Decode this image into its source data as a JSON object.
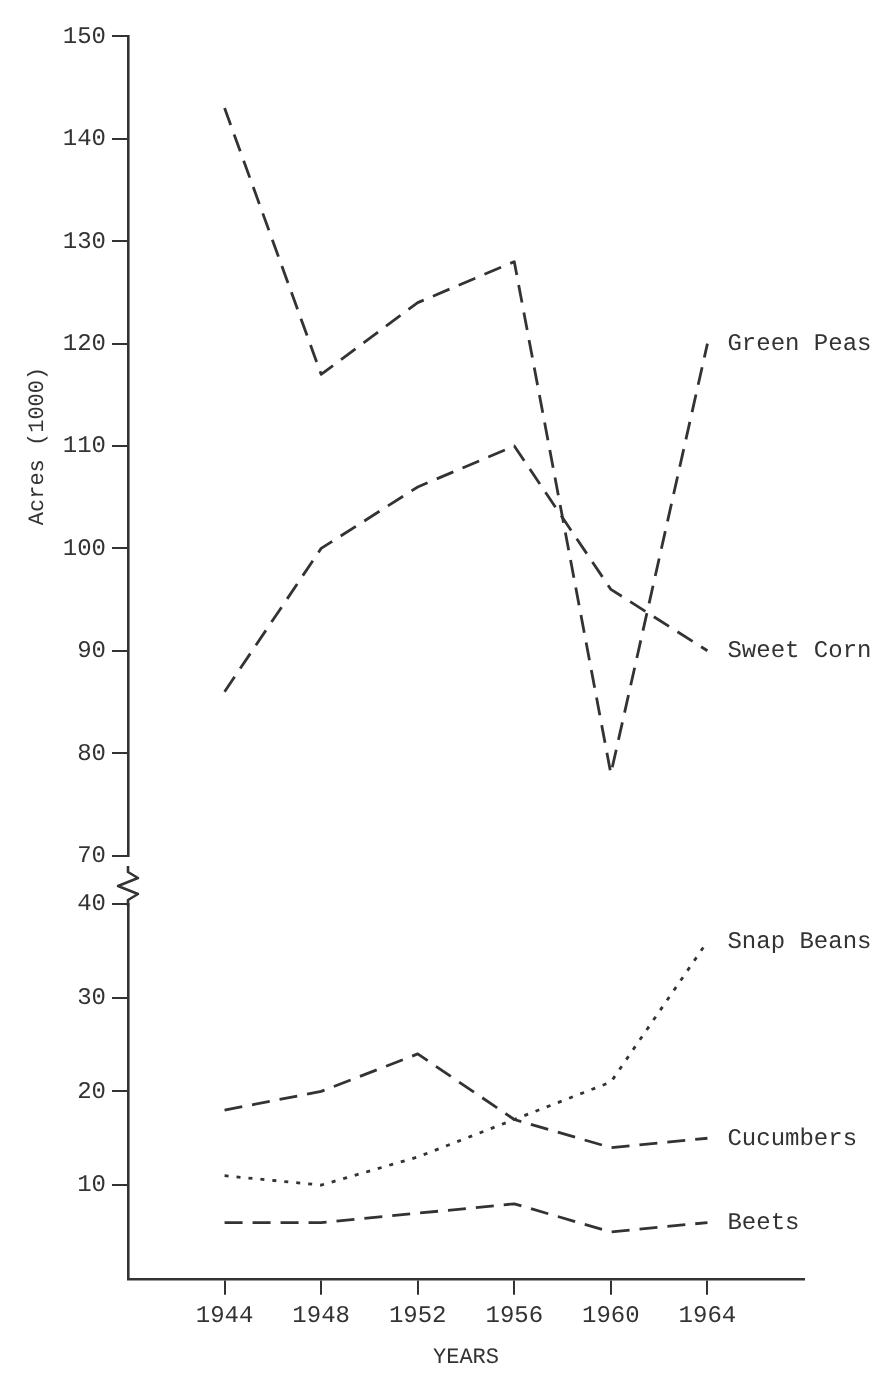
{
  "chart_data": [
    {
      "type": "line",
      "ylabel": "Acres (1000)",
      "x": [
        1944,
        1948,
        1952,
        1956,
        1960,
        1964
      ],
      "ylim": [
        70,
        150
      ],
      "yticks": [
        70,
        80,
        90,
        100,
        110,
        120,
        130,
        140,
        150
      ],
      "tick_labels": "y",
      "grid": false,
      "series": [
        {
          "name": "Green Peas",
          "color": "#333333",
          "line_style": "dashed",
          "values": [
            143,
            117,
            124,
            128,
            78,
            120
          ]
        },
        {
          "name": "Sweet Corn",
          "color": "#333333",
          "line_style": "dashed",
          "values": [
            86,
            100,
            106,
            110,
            96,
            90
          ]
        }
      ]
    },
    {
      "type": "line",
      "xlabel": "YEARS",
      "x": [
        1944,
        1948,
        1952,
        1956,
        1960,
        1964
      ],
      "xlim": [
        1940,
        1968
      ],
      "xticks": [
        1944,
        1948,
        1952,
        1956,
        1960,
        1964
      ],
      "ylim": [
        0,
        40
      ],
      "yticks": [
        10,
        20,
        30,
        40
      ],
      "grid": false,
      "series": [
        {
          "name": "Snap Beans",
          "color": "#333333",
          "line_style": "dotted",
          "values": [
            11,
            10,
            13,
            17,
            21,
            36
          ]
        },
        {
          "name": "Cucumbers",
          "color": "#333333",
          "line_style": "dashed",
          "values": [
            18,
            20,
            24,
            17,
            14,
            15
          ]
        },
        {
          "name": "Beets",
          "color": "#333333",
          "line_style": "dashed",
          "values": [
            6,
            6,
            7,
            8,
            5,
            6
          ]
        }
      ]
    }
  ]
}
